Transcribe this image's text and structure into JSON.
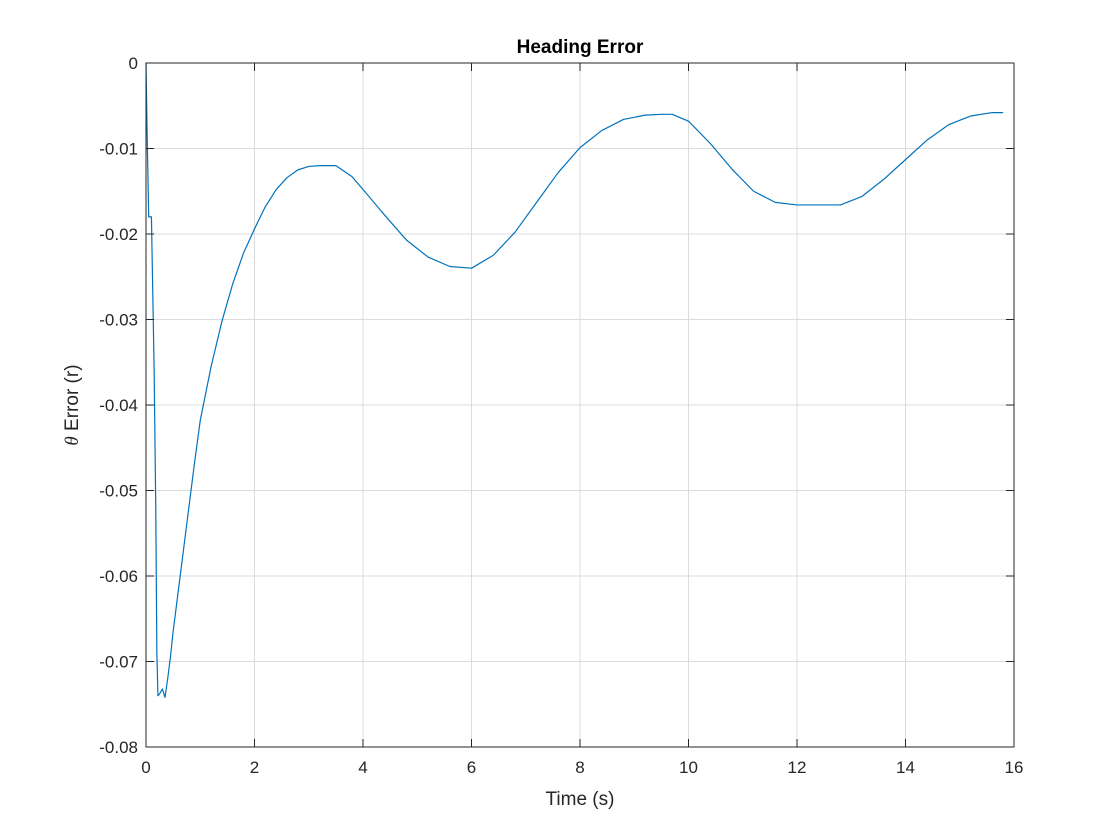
{
  "chart_data": {
    "type": "line",
    "title": "Heading Error",
    "xlabel": "Time (s)",
    "ylabel_symbol": "θ",
    "ylabel_text": " Error (r)",
    "xlim": [
      0,
      16
    ],
    "ylim": [
      -0.08,
      0
    ],
    "xticks": [
      0,
      2,
      4,
      6,
      8,
      10,
      12,
      14,
      16
    ],
    "xtick_labels": [
      "0",
      "2",
      "4",
      "6",
      "8",
      "10",
      "12",
      "14",
      "16"
    ],
    "yticks": [
      0,
      -0.01,
      -0.02,
      -0.03,
      -0.04,
      -0.05,
      -0.06,
      -0.07,
      -0.08
    ],
    "ytick_labels": [
      "0",
      "-0.01",
      "-0.02",
      "-0.03",
      "-0.04",
      "-0.05",
      "-0.06",
      "-0.07",
      "-0.08"
    ],
    "grid": true,
    "box": true,
    "line_color": "#0072BD",
    "grid_color": "#dcdcdc",
    "axis_color": "#262626",
    "series": [
      {
        "x": [
          0,
          0.02,
          0.05,
          0.1,
          0.15,
          0.18,
          0.2,
          0.22,
          0.25,
          0.3,
          0.35,
          0.4,
          0.45,
          0.5,
          0.6,
          0.7,
          0.8,
          0.9,
          1.0,
          1.2,
          1.4,
          1.6,
          1.8,
          2.0,
          2.2,
          2.4,
          2.6,
          2.8,
          3.0,
          3.2,
          3.4,
          3.5,
          3.8,
          4.0,
          4.4,
          4.8,
          5.2,
          5.6,
          6.0,
          6.4,
          6.8,
          7.2,
          7.6,
          8.0,
          8.4,
          8.8,
          9.2,
          9.5,
          9.7,
          10.0,
          10.4,
          10.8,
          11.2,
          11.6,
          12.0,
          12.4,
          12.8,
          13.2,
          13.6,
          14.0,
          14.4,
          14.8,
          15.2,
          15.6,
          15.8
        ],
        "y": [
          0,
          -0.008,
          -0.018,
          -0.018,
          -0.036,
          -0.052,
          -0.069,
          -0.074,
          -0.0738,
          -0.0732,
          -0.0742,
          -0.072,
          -0.0695,
          -0.0665,
          -0.0615,
          -0.0565,
          -0.0515,
          -0.0465,
          -0.0418,
          -0.0355,
          -0.0302,
          -0.0258,
          -0.0222,
          -0.0194,
          -0.0168,
          -0.0148,
          -0.0134,
          -0.0125,
          -0.0121,
          -0.012,
          -0.012,
          -0.012,
          -0.0133,
          -0.0148,
          -0.0178,
          -0.0207,
          -0.0227,
          -0.0238,
          -0.024,
          -0.0225,
          -0.0198,
          -0.0163,
          -0.0128,
          -0.0099,
          -0.0079,
          -0.0066,
          -0.0061,
          -0.006,
          -0.006,
          -0.0068,
          -0.0094,
          -0.0124,
          -0.015,
          -0.0163,
          -0.0166,
          -0.0166,
          -0.0166,
          -0.0156,
          -0.0136,
          -0.0113,
          -0.009,
          -0.0072,
          -0.0062,
          -0.0058,
          -0.0058
        ]
      }
    ]
  }
}
